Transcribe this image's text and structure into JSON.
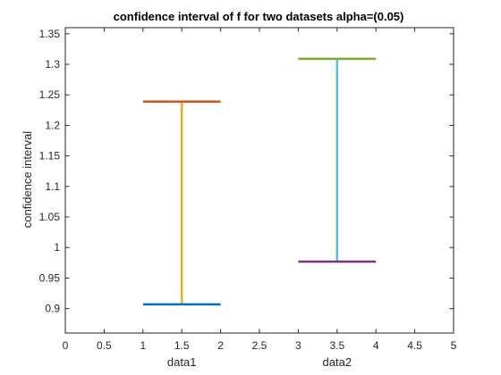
{
  "chart_data": {
    "type": "errorbar",
    "title": "confidence interval of f for two datasets alpha=(0.05)",
    "xlabel": "",
    "ylabel": "confidence interval",
    "xlim": [
      0,
      5
    ],
    "ylim": [
      0.86,
      1.36
    ],
    "xticks": [
      0,
      0.5,
      1,
      1.5,
      2,
      2.5,
      3,
      3.5,
      4,
      4.5,
      5
    ],
    "xtick_labels": [
      "0",
      "0.5",
      "1",
      "1.5",
      "2",
      "2.5",
      "3",
      "3.5",
      "4",
      "4.5",
      "5"
    ],
    "yticks": [
      0.9,
      0.95,
      1,
      1.05,
      1.1,
      1.15,
      1.2,
      1.25,
      1.3,
      1.35
    ],
    "ytick_labels": [
      "0.9",
      "0.95",
      "1",
      "1.05",
      "1.1",
      "1.15",
      "1.2",
      "1.25",
      "1.3",
      "1.35"
    ],
    "category_labels": [
      {
        "label": "data1",
        "x": 1.5
      },
      {
        "label": "data2",
        "x": 3.5
      }
    ],
    "grid": false,
    "series": [
      {
        "lower": 0.907,
        "upper": 1.239,
        "center_x": 1.5,
        "cap_x": [
          1,
          2
        ],
        "colors": {
          "lower_cap": "#0072BD",
          "upper_cap": "#D95319",
          "whisker": "#EDB120"
        }
      },
      {
        "lower": 0.977,
        "upper": 1.309,
        "center_x": 3.5,
        "cap_x": [
          3,
          4
        ],
        "colors": {
          "lower_cap": "#7E2F8E",
          "upper_cap": "#77AC30",
          "whisker": "#4DBEEE"
        }
      }
    ]
  }
}
